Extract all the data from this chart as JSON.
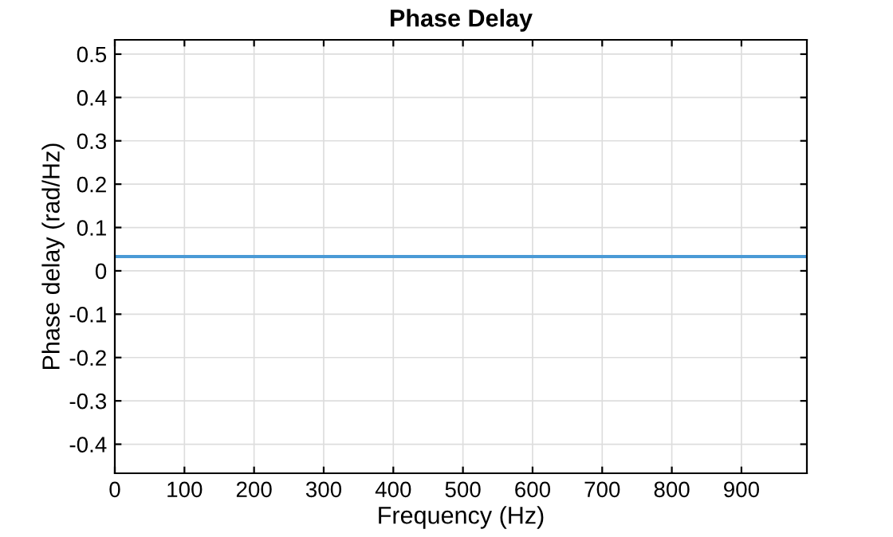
{
  "chart_data": {
    "type": "line",
    "title": "Phase Delay",
    "xlabel": "Frequency (Hz)",
    "ylabel": "Phase delay (rad/Hz)",
    "x": [
      0,
      994
    ],
    "series": [
      {
        "color": "#4a9ad6",
        "values": [
          0.033,
          0.033
        ]
      }
    ],
    "xlim": [
      0,
      994
    ],
    "xticks": [
      0,
      100,
      200,
      300,
      400,
      500,
      600,
      700,
      800,
      900
    ],
    "ylim": [
      -0.467,
      0.533
    ],
    "yticks": [
      {
        "value": -0.4,
        "label": "-0.4"
      },
      {
        "value": -0.3,
        "label": "-0.3"
      },
      {
        "value": -0.2,
        "label": "-0.2"
      },
      {
        "value": -0.1,
        "label": "-0.1"
      },
      0,
      0.1,
      0.2,
      0.3,
      0.4,
      0.5
    ],
    "grid": true
  }
}
